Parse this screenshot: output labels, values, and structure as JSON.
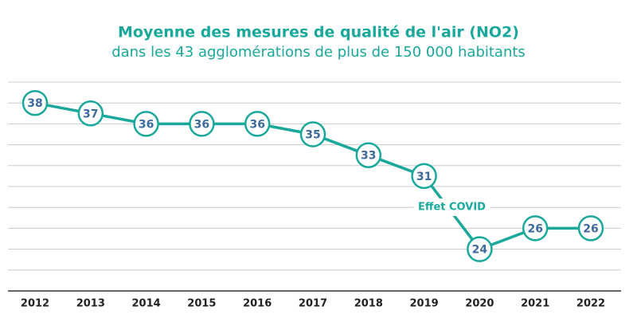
{
  "chart_data": {
    "type": "line",
    "title": "Moyenne des mesures de qualité de l'air (NO2)",
    "subtitle": "dans les 43 agglomérations de plus de 150 000 habitants",
    "categories": [
      "2012",
      "2013",
      "2014",
      "2015",
      "2016",
      "2017",
      "2018",
      "2019",
      "2020",
      "2021",
      "2022"
    ],
    "series": [
      {
        "name": "NO2",
        "color": "#1aa89a",
        "values": [
          38,
          37,
          36,
          36,
          36,
          35,
          33,
          31,
          24,
          26,
          26
        ]
      }
    ],
    "annotation": "Effet COVID",
    "ylim": [
      20,
      40
    ],
    "yticks": [
      20,
      22,
      24,
      26,
      28,
      30,
      32,
      34,
      36,
      38,
      40
    ],
    "grid": true
  }
}
